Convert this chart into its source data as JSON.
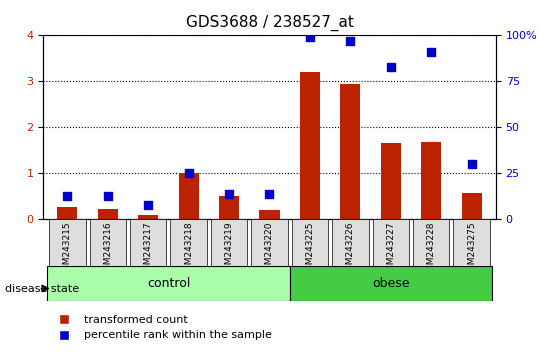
{
  "title": "GDS3688 / 238527_at",
  "samples": [
    "GSM243215",
    "GSM243216",
    "GSM243217",
    "GSM243218",
    "GSM243219",
    "GSM243220",
    "GSM243225",
    "GSM243226",
    "GSM243227",
    "GSM243228",
    "GSM243275"
  ],
  "groups": [
    "control",
    "control",
    "control",
    "control",
    "control",
    "control",
    "obese",
    "obese",
    "obese",
    "obese",
    "obese"
  ],
  "transformed_count": [
    0.28,
    0.22,
    0.1,
    1.0,
    0.52,
    0.2,
    3.2,
    2.95,
    1.67,
    1.68,
    0.58
  ],
  "percentile_rank": [
    13,
    13,
    8,
    25,
    14,
    14,
    99,
    97,
    83,
    91,
    30
  ],
  "ylim_left": [
    0,
    4
  ],
  "ylim_right": [
    0,
    100
  ],
  "yticks_left": [
    0,
    1,
    2,
    3,
    4
  ],
  "yticks_right": [
    0,
    25,
    50,
    75,
    100
  ],
  "bar_color": "#bb2200",
  "dot_color": "#0000cc",
  "control_bg": "#ccffcc",
  "obese_bg": "#44dd44",
  "xticklabel_bg": "#dddddd",
  "legend_bar_label": "transformed count",
  "legend_dot_label": "percentile rank within the sample",
  "group_label_prefix": "disease state",
  "control_label": "control",
  "obese_label": "obese"
}
